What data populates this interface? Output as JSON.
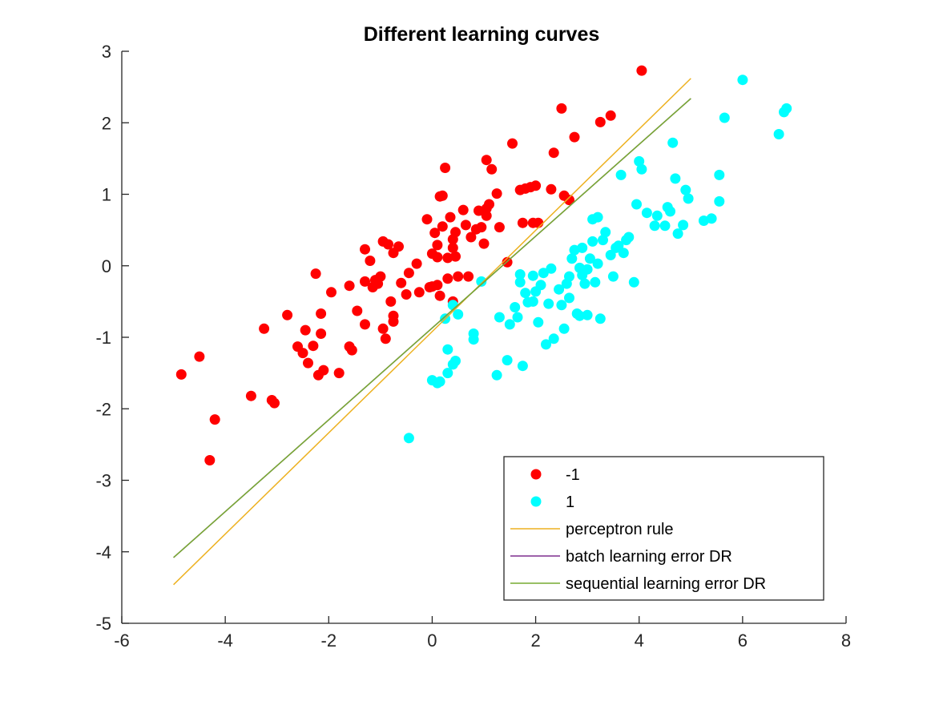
{
  "chart_data": {
    "type": "scatter",
    "title": "Different learning curves",
    "xlabel": "",
    "ylabel": "",
    "xlim": [
      -6,
      8
    ],
    "ylim": [
      -5,
      3
    ],
    "x_ticks": [
      -6,
      -4,
      -2,
      0,
      2,
      4,
      6,
      8
    ],
    "y_ticks": [
      -5,
      -4,
      -3,
      -2,
      -1,
      0,
      1,
      2,
      3
    ],
    "x_tick_labels": [
      "-6",
      "-4",
      "-2",
      "0",
      "2",
      "4",
      "6",
      "8"
    ],
    "y_tick_labels": [
      "-5",
      "-4",
      "-3",
      "-2",
      "-1",
      "0",
      "1",
      "2",
      "3"
    ],
    "grid": false,
    "legend_position": "bottom-right",
    "series": [
      {
        "name": "-1",
        "kind": "scatter",
        "color": "#ff0000",
        "points": [
          [
            -4.85,
            -1.52
          ],
          [
            -4.5,
            -1.27
          ],
          [
            -4.3,
            -2.72
          ],
          [
            -4.2,
            -2.15
          ],
          [
            -3.5,
            -1.82
          ],
          [
            -3.25,
            -0.88
          ],
          [
            -3.1,
            -1.88
          ],
          [
            -3.05,
            -1.92
          ],
          [
            -2.8,
            -0.69
          ],
          [
            -2.6,
            -1.13
          ],
          [
            -2.5,
            -1.22
          ],
          [
            -2.45,
            -0.9
          ],
          [
            -2.4,
            -1.36
          ],
          [
            -2.3,
            -1.12
          ],
          [
            -2.25,
            -0.11
          ],
          [
            -2.2,
            -1.53
          ],
          [
            -2.15,
            -0.95
          ],
          [
            -2.15,
            -0.67
          ],
          [
            -2.1,
            -1.46
          ],
          [
            -1.95,
            -0.37
          ],
          [
            -1.8,
            -1.5
          ],
          [
            -1.6,
            -1.13
          ],
          [
            -1.6,
            -0.28
          ],
          [
            -1.55,
            -1.18
          ],
          [
            -1.45,
            -0.63
          ],
          [
            -1.3,
            -0.82
          ],
          [
            -1.3,
            -0.22
          ],
          [
            -1.3,
            0.23
          ],
          [
            -1.2,
            0.07
          ],
          [
            -1.15,
            -0.3
          ],
          [
            -1.1,
            -0.2
          ],
          [
            -1.05,
            -0.25
          ],
          [
            -1.0,
            -0.15
          ],
          [
            -0.95,
            -0.88
          ],
          [
            -0.95,
            0.34
          ],
          [
            -0.9,
            -1.02
          ],
          [
            -0.85,
            0.3
          ],
          [
            -0.8,
            -0.5
          ],
          [
            -0.75,
            -0.7
          ],
          [
            -0.75,
            -0.78
          ],
          [
            -0.75,
            0.18
          ],
          [
            -0.65,
            0.27
          ],
          [
            -0.6,
            -0.24
          ],
          [
            -0.5,
            -0.4
          ],
          [
            -0.45,
            -0.1
          ],
          [
            -0.3,
            0.03
          ],
          [
            -0.25,
            -0.37
          ],
          [
            -0.1,
            0.65
          ],
          [
            -0.05,
            -0.3
          ],
          [
            0.0,
            0.17
          ],
          [
            0.0,
            -0.29
          ],
          [
            0.05,
            0.46
          ],
          [
            0.1,
            -0.27
          ],
          [
            0.1,
            0.12
          ],
          [
            0.1,
            0.29
          ],
          [
            0.15,
            0.97
          ],
          [
            0.15,
            -0.42
          ],
          [
            0.2,
            0.98
          ],
          [
            0.2,
            0.55
          ],
          [
            0.25,
            1.37
          ],
          [
            0.3,
            0.11
          ],
          [
            0.3,
            -0.18
          ],
          [
            0.35,
            0.68
          ],
          [
            0.4,
            -0.5
          ],
          [
            0.4,
            0.25
          ],
          [
            0.4,
            0.37
          ],
          [
            0.45,
            0.47
          ],
          [
            0.45,
            0.13
          ],
          [
            0.5,
            -0.15
          ],
          [
            0.6,
            0.78
          ],
          [
            0.65,
            0.57
          ],
          [
            0.7,
            -0.15
          ],
          [
            0.75,
            0.4
          ],
          [
            0.85,
            0.51
          ],
          [
            0.9,
            0.77
          ],
          [
            0.95,
            0.54
          ],
          [
            1.0,
            0.31
          ],
          [
            1.05,
            0.7
          ],
          [
            1.05,
            0.8
          ],
          [
            1.1,
            0.86
          ],
          [
            1.05,
            1.48
          ],
          [
            1.15,
            1.35
          ],
          [
            1.25,
            1.01
          ],
          [
            1.3,
            0.54
          ],
          [
            1.45,
            0.05
          ],
          [
            1.55,
            1.71
          ],
          [
            1.7,
            1.06
          ],
          [
            1.75,
            0.6
          ],
          [
            1.8,
            1.08
          ],
          [
            1.9,
            1.1
          ],
          [
            1.95,
            0.6
          ],
          [
            2.0,
            1.12
          ],
          [
            2.05,
            0.6
          ],
          [
            2.3,
            1.07
          ],
          [
            2.35,
            1.58
          ],
          [
            2.5,
            2.2
          ],
          [
            2.55,
            0.98
          ],
          [
            2.65,
            0.92
          ],
          [
            2.75,
            1.8
          ],
          [
            3.25,
            2.01
          ],
          [
            3.45,
            2.1
          ],
          [
            4.05,
            2.73
          ]
        ]
      },
      {
        "name": "1",
        "kind": "scatter",
        "color": "#00ffff",
        "points": [
          [
            -0.45,
            -2.41
          ],
          [
            0.0,
            -1.6
          ],
          [
            0.1,
            -1.64
          ],
          [
            0.15,
            -1.62
          ],
          [
            0.25,
            -0.74
          ],
          [
            0.3,
            -1.5
          ],
          [
            0.3,
            -1.17
          ],
          [
            0.4,
            -1.38
          ],
          [
            0.4,
            -0.55
          ],
          [
            0.45,
            -1.33
          ],
          [
            0.5,
            -0.68
          ],
          [
            0.8,
            -0.95
          ],
          [
            0.8,
            -1.03
          ],
          [
            0.95,
            -0.22
          ],
          [
            1.25,
            -1.53
          ],
          [
            1.3,
            -0.72
          ],
          [
            1.45,
            -1.32
          ],
          [
            1.5,
            -0.82
          ],
          [
            1.6,
            -0.58
          ],
          [
            1.65,
            -0.72
          ],
          [
            1.7,
            -0.12
          ],
          [
            1.7,
            -0.23
          ],
          [
            1.75,
            -1.4
          ],
          [
            1.8,
            -0.38
          ],
          [
            1.85,
            -0.51
          ],
          [
            1.95,
            -0.14
          ],
          [
            1.95,
            -0.5
          ],
          [
            2.0,
            -0.36
          ],
          [
            2.05,
            -0.79
          ],
          [
            2.1,
            -0.27
          ],
          [
            2.15,
            -0.1
          ],
          [
            2.2,
            -1.1
          ],
          [
            2.25,
            -0.53
          ],
          [
            2.3,
            -0.04
          ],
          [
            2.35,
            -1.02
          ],
          [
            2.45,
            -0.33
          ],
          [
            2.5,
            -0.55
          ],
          [
            2.55,
            -0.88
          ],
          [
            2.6,
            -0.25
          ],
          [
            2.65,
            -0.15
          ],
          [
            2.65,
            -0.45
          ],
          [
            2.7,
            0.1
          ],
          [
            2.75,
            0.22
          ],
          [
            2.8,
            -0.67
          ],
          [
            2.85,
            -0.7
          ],
          [
            2.85,
            -0.03
          ],
          [
            2.9,
            -0.13
          ],
          [
            2.9,
            0.25
          ],
          [
            2.95,
            -0.25
          ],
          [
            3.0,
            -0.69
          ],
          [
            3.0,
            -0.05
          ],
          [
            3.05,
            0.1
          ],
          [
            3.1,
            0.34
          ],
          [
            3.1,
            0.65
          ],
          [
            3.15,
            -0.23
          ],
          [
            3.2,
            0.68
          ],
          [
            3.2,
            0.03
          ],
          [
            3.25,
            -0.74
          ],
          [
            3.3,
            0.36
          ],
          [
            3.35,
            0.47
          ],
          [
            3.45,
            0.15
          ],
          [
            3.5,
            -0.15
          ],
          [
            3.55,
            0.25
          ],
          [
            3.6,
            0.28
          ],
          [
            3.65,
            1.27
          ],
          [
            3.7,
            0.18
          ],
          [
            3.75,
            0.36
          ],
          [
            3.8,
            0.4
          ],
          [
            3.9,
            -0.23
          ],
          [
            3.95,
            0.86
          ],
          [
            4.0,
            1.46
          ],
          [
            4.05,
            1.35
          ],
          [
            4.15,
            0.74
          ],
          [
            4.3,
            0.56
          ],
          [
            4.35,
            0.7
          ],
          [
            4.5,
            0.56
          ],
          [
            4.55,
            0.82
          ],
          [
            4.6,
            0.76
          ],
          [
            4.65,
            1.72
          ],
          [
            4.7,
            1.22
          ],
          [
            4.75,
            0.45
          ],
          [
            4.85,
            0.57
          ],
          [
            4.9,
            1.06
          ],
          [
            4.95,
            0.94
          ],
          [
            5.25,
            0.63
          ],
          [
            5.4,
            0.66
          ],
          [
            5.55,
            1.27
          ],
          [
            5.55,
            0.9
          ],
          [
            5.65,
            2.07
          ],
          [
            6.0,
            2.6
          ],
          [
            6.7,
            1.84
          ],
          [
            6.8,
            2.15
          ],
          [
            6.85,
            2.2
          ]
        ]
      },
      {
        "name": "perceptron rule",
        "kind": "line",
        "color": "#edb120",
        "x": [
          -5,
          5
        ],
        "y": [
          -4.46,
          2.62
        ]
      },
      {
        "name": "batch learning error DR",
        "kind": "line",
        "color": "#7e2f8e",
        "x": [
          -5,
          5
        ],
        "y": [
          -4.08,
          2.34
        ]
      },
      {
        "name": "sequential learning error DR",
        "kind": "line",
        "color": "#77ac30",
        "x": [
          -5,
          5
        ],
        "y": [
          -4.08,
          2.34
        ]
      }
    ]
  }
}
